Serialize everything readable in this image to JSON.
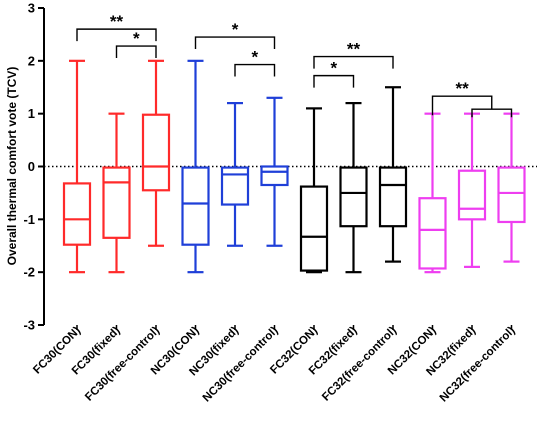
{
  "chart_data": {
    "type": "boxplot",
    "ylabel": "Overall thermal comfort vote (TCV)",
    "ylim": [
      -3,
      3
    ],
    "yticks": [
      -3,
      -2,
      -1,
      0,
      1,
      2,
      3
    ],
    "reference_line": 0,
    "categories": [
      "FC30(CON)",
      "FC30(fixed)",
      "FC30(free-control)",
      "NC30(CON)",
      "NC30(fixed)",
      "NC30(free-control)",
      "FC32(CON)",
      "FC32(fixed)",
      "FC32(free-control)",
      "NC32(CON)",
      "NC32(fixed)",
      "NC32(free-control)"
    ],
    "boxes": [
      {
        "min": -2.0,
        "q1": -1.48,
        "median": -1.0,
        "q3": -0.32,
        "max": 2.0,
        "color": "#ff2a2a"
      },
      {
        "min": -2.0,
        "q1": -1.35,
        "median": -0.3,
        "q3": -0.02,
        "max": 1.0,
        "color": "#ff2a2a"
      },
      {
        "min": -1.5,
        "q1": -0.45,
        "median": 0.0,
        "q3": 0.98,
        "max": 2.0,
        "color": "#ff2a2a"
      },
      {
        "min": -2.0,
        "q1": -1.48,
        "median": -0.7,
        "q3": -0.02,
        "max": 2.0,
        "color": "#1f3fd8"
      },
      {
        "min": -1.5,
        "q1": -0.72,
        "median": -0.15,
        "q3": -0.02,
        "max": 1.2,
        "color": "#1f3fd8"
      },
      {
        "min": -1.5,
        "q1": -0.35,
        "median": -0.1,
        "q3": 0.0,
        "max": 1.3,
        "color": "#1f3fd8"
      },
      {
        "min": -2.0,
        "q1": -1.97,
        "median": -1.33,
        "q3": -0.38,
        "max": 1.1,
        "color": "#000000"
      },
      {
        "min": -2.0,
        "q1": -1.13,
        "median": -0.5,
        "q3": -0.02,
        "max": 1.2,
        "color": "#000000"
      },
      {
        "min": -1.8,
        "q1": -1.13,
        "median": -0.35,
        "q3": -0.02,
        "max": 1.5,
        "color": "#000000"
      },
      {
        "min": -2.0,
        "q1": -1.93,
        "median": -1.2,
        "q3": -0.6,
        "max": 1.0,
        "color": "#ee3ef0"
      },
      {
        "min": -1.9,
        "q1": -1.0,
        "median": -0.8,
        "q3": -0.08,
        "max": 1.0,
        "color": "#ee3ef0"
      },
      {
        "min": -1.8,
        "q1": -1.05,
        "median": -0.5,
        "q3": -0.02,
        "max": 1.0,
        "color": "#ee3ef0"
      }
    ],
    "significance": [
      {
        "from": 0,
        "to": 2,
        "y": 2.6,
        "label": "**",
        "type": "simple"
      },
      {
        "from": 1,
        "to": 2,
        "y": 2.28,
        "label": "*",
        "type": "simple"
      },
      {
        "from": 3,
        "to": 5,
        "y": 2.45,
        "label": "*",
        "type": "simple"
      },
      {
        "from": 4,
        "to": 5,
        "y": 1.93,
        "label": "*",
        "type": "simple"
      },
      {
        "from": 6,
        "to": 8,
        "y": 2.08,
        "label": "**",
        "type": "simple"
      },
      {
        "from": 6,
        "to": 7,
        "y": 1.72,
        "label": "*",
        "type": "simple"
      },
      {
        "from": 9,
        "to": 11,
        "y": 1.33,
        "label": "**",
        "type": "grouped"
      }
    ]
  }
}
